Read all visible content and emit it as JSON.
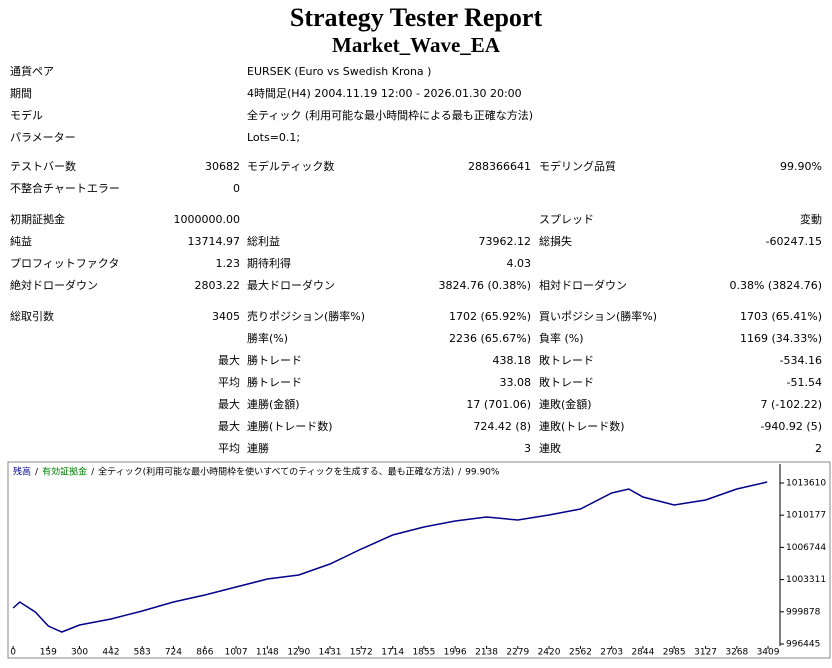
{
  "header": {
    "title": "Strategy Tester Report",
    "subtitle": "Market_Wave_EA"
  },
  "info": [
    [
      "通貨ペア",
      "EURSEK (Euro vs Swedish Krona )"
    ],
    [
      "期間",
      "4時間足(H4) 2004.11.19 12:00 - 2026.01.30 20:00"
    ],
    [
      "モデル",
      "全ティック (利用可能な最小時間枠による最も正確な方法)"
    ],
    [
      "パラメーター",
      "Lots=0.1;"
    ]
  ],
  "stats": [
    [
      "テストバー数",
      "30682",
      "モデルティック数",
      "288366641",
      "モデリング品質",
      "99.90%"
    ],
    [
      "不整合チャートエラー",
      "0",
      null,
      null,
      null,
      null
    ],
    [
      "初期証拠金",
      "1000000.00",
      null,
      null,
      "スプレッド",
      "変動"
    ],
    [
      "純益",
      "13714.97",
      "総利益",
      "73962.12",
      "総損失",
      "-60247.15"
    ],
    [
      "プロフィットファクタ",
      "1.23",
      "期待利得",
      "4.03",
      null,
      null
    ],
    [
      "絶対ドローダウン",
      "2803.22",
      "最大ドローダウン",
      "3824.76 (0.38%)",
      "相対ドローダウン",
      "0.38% (3824.76)"
    ],
    [
      "総取引数",
      "3405",
      "売りポジション(勝率%)",
      "1702 (65.92%)",
      "買いポジション(勝率%)",
      "1703 (65.41%)"
    ],
    [
      null,
      null,
      "勝率(%)",
      "2236 (65.67%)",
      "負率 (%)",
      "1169 (34.33%)"
    ],
    [
      null,
      "最大",
      "勝トレード",
      "438.18",
      "敗トレード",
      "-534.16"
    ],
    [
      null,
      "平均",
      "勝トレード",
      "33.08",
      "敗トレード",
      "-51.54"
    ],
    [
      null,
      "最大",
      "連勝(金額)",
      "17 (701.06)",
      "連敗(金額)",
      "7 (-102.22)"
    ],
    [
      null,
      "最大",
      "連勝(トレード数)",
      "724.42 (8)",
      "連敗(トレード数)",
      "-940.92 (5)"
    ],
    [
      null,
      "平均",
      "連勝",
      "3",
      "連敗",
      "2"
    ]
  ],
  "chart_data": {
    "type": "line",
    "x": [
      0,
      30,
      100,
      159,
      220,
      300,
      442,
      583,
      724,
      866,
      1007,
      1148,
      1290,
      1431,
      1572,
      1714,
      1855,
      1996,
      2138,
      2279,
      2420,
      2562,
      2703,
      2780,
      2844,
      2985,
      3127,
      3268,
      3405
    ],
    "series": [
      {
        "name": "残高",
        "color": "#00008b",
        "values": [
          1000283,
          1000922,
          999857,
          998364,
          997724,
          998470,
          999110,
          999963,
          1000922,
          1001668,
          1002521,
          1003374,
          1003800,
          1004973,
          1006572,
          1008064,
          1008917,
          1009557,
          1009983,
          1009663,
          1010196,
          1010836,
          1012542,
          1012968,
          1012115,
          1011262,
          1011795,
          1012968,
          1013715
        ]
      }
    ],
    "legend_extra": [
      {
        "text": "有効証拠金",
        "color": "#008000"
      },
      {
        "text": "全ティック(利用可能な最小時間枠を使いすべてのティックを生成する、最も正確な方法)",
        "color": "#000000"
      },
      {
        "text": "99.90%",
        "color": "#000000"
      }
    ],
    "legend_separator": "/",
    "xlim": [
      -14,
      3463
    ],
    "ylim": [
      996232,
      1015635
    ],
    "xticks": [
      0,
      159,
      300,
      442,
      583,
      724,
      866,
      1007,
      1148,
      1290,
      1431,
      1572,
      1714,
      1855,
      1996,
      2138,
      2279,
      2420,
      2562,
      2703,
      2844,
      2985,
      3127,
      3268,
      3409
    ],
    "yticks": [
      996445,
      999878,
      1003311,
      1006744,
      1010177,
      1013610
    ],
    "grid": false
  }
}
